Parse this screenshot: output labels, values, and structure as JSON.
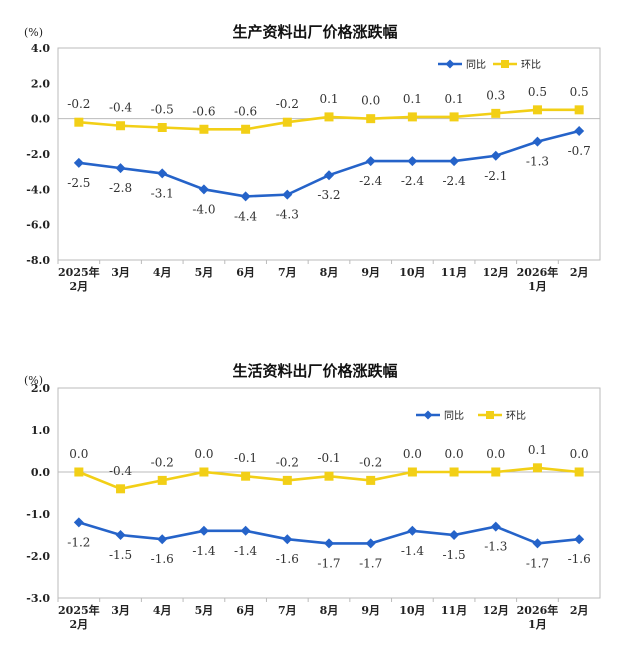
{
  "chart_data": [
    {
      "type": "line",
      "title": "生产资料出厂价格涨跌幅",
      "unit_label": "(%)",
      "ylim": [
        -8.0,
        4.0
      ],
      "yticks": [
        "4.0",
        "2.0",
        "0.0",
        "-2.0",
        "-4.0",
        "-6.0",
        "-8.0"
      ],
      "categories": [
        [
          "2025年",
          "2月"
        ],
        [
          "3月"
        ],
        [
          "4月"
        ],
        [
          "5月"
        ],
        [
          "6月"
        ],
        [
          "7月"
        ],
        [
          "8月"
        ],
        [
          "9月"
        ],
        [
          "10月"
        ],
        [
          "11月"
        ],
        [
          "12月"
        ],
        [
          "2026年",
          "1月"
        ],
        [
          "2月"
        ]
      ],
      "grid": false,
      "legend_position": "top-right",
      "series": [
        {
          "name": "同比",
          "color": "#2563c9",
          "marker": "diamond",
          "values": [
            -2.5,
            -2.8,
            -3.1,
            -4.0,
            -4.4,
            -4.3,
            -3.2,
            -2.4,
            -2.4,
            -2.4,
            -2.1,
            -1.3,
            -0.7
          ],
          "labels": [
            "-2.5",
            "-2.8",
            "-3.1",
            "-4.0",
            "-4.4",
            "-4.3",
            "-3.2",
            "-2.4",
            "-2.4",
            "-2.4",
            "-2.1",
            "-1.3",
            "-0.7"
          ],
          "label_side": "below"
        },
        {
          "name": "环比",
          "color": "#f2cf16",
          "marker": "square",
          "values": [
            -0.2,
            -0.4,
            -0.5,
            -0.6,
            -0.6,
            -0.2,
            0.1,
            0.0,
            0.1,
            0.1,
            0.3,
            0.5,
            0.5
          ],
          "labels": [
            "-0.2",
            "-0.4",
            "-0.5",
            "-0.6",
            "-0.6",
            "-0.2",
            "0.1",
            "0.0",
            "0.1",
            "0.1",
            "0.3",
            "0.5",
            "0.5"
          ],
          "label_side": "above"
        }
      ]
    },
    {
      "type": "line",
      "title": "生活资料出厂价格涨跌幅",
      "unit_label": "(%)",
      "ylim": [
        -3.0,
        2.0
      ],
      "yticks": [
        "2.0",
        "1.0",
        "0.0",
        "-1.0",
        "-2.0",
        "-3.0"
      ],
      "categories": [
        [
          "2025年",
          "2月"
        ],
        [
          "3月"
        ],
        [
          "4月"
        ],
        [
          "5月"
        ],
        [
          "6月"
        ],
        [
          "7月"
        ],
        [
          "8月"
        ],
        [
          "9月"
        ],
        [
          "10月"
        ],
        [
          "11月"
        ],
        [
          "12月"
        ],
        [
          "2026年",
          "1月"
        ],
        [
          "2月"
        ]
      ],
      "grid": false,
      "legend_position": "top-right",
      "series": [
        {
          "name": "同比",
          "color": "#2563c9",
          "marker": "diamond",
          "values": [
            -1.2,
            -1.5,
            -1.6,
            -1.4,
            -1.4,
            -1.6,
            -1.7,
            -1.7,
            -1.4,
            -1.5,
            -1.3,
            -1.7,
            -1.6
          ],
          "labels": [
            "-1.2",
            "-1.5",
            "-1.6",
            "-1.4",
            "-1.4",
            "-1.6",
            "-1.7",
            "-1.7",
            "-1.4",
            "-1.5",
            "-1.3",
            "-1.7",
            "-1.6"
          ],
          "label_side": "below"
        },
        {
          "name": "环比",
          "color": "#f2cf16",
          "marker": "square",
          "values": [
            0.0,
            -0.4,
            -0.2,
            0.0,
            -0.1,
            -0.2,
            -0.1,
            -0.2,
            0.0,
            0.0,
            0.0,
            0.1,
            0.0
          ],
          "labels": [
            "0.0",
            "-0.4",
            "-0.2",
            "0.0",
            "-0.1",
            "-0.2",
            "-0.1",
            "-0.2",
            "0.0",
            "0.0",
            "0.0",
            "0.1",
            "0.0"
          ],
          "label_side": "above"
        }
      ]
    }
  ]
}
